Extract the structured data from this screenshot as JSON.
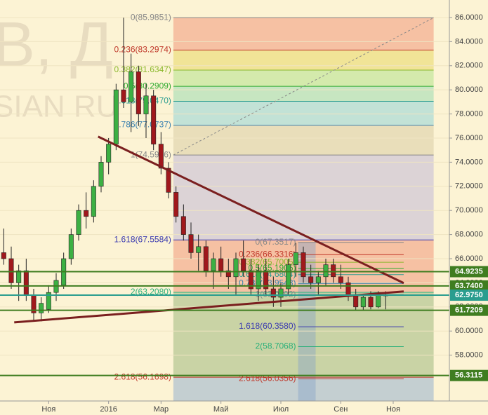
{
  "chart_data": {
    "type": "candlestick",
    "watermark": [
      "В, Д",
      "SIAN RU"
    ],
    "categories": [
      null,
      null,
      null,
      null,
      null,
      null,
      "Ноя",
      null,
      null,
      null,
      null,
      null,
      null,
      null,
      "2016",
      null,
      null,
      null,
      null,
      null,
      null,
      "Мар",
      null,
      null,
      null,
      null,
      null,
      null,
      null,
      "Май",
      null,
      null,
      null,
      null,
      null,
      null,
      null,
      "Июл",
      null,
      null,
      null,
      null,
      null,
      null,
      null,
      "Сен",
      null,
      null,
      null,
      null,
      null,
      null,
      "Ноя",
      null,
      null,
      null,
      null,
      null,
      null,
      null
    ],
    "open": [
      66.5,
      66,
      64,
      65,
      63,
      61.5,
      61.8,
      63.2,
      63.8,
      66,
      68,
      70,
      69.5,
      72,
      74,
      75.5,
      80,
      79,
      81.5,
      78,
      79.5,
      75.5,
      73.5,
      71.5,
      69.5,
      68,
      66.5,
      67,
      65,
      66,
      65,
      64.5,
      66,
      65,
      63.5,
      65,
      63.5,
      62.8,
      63.5,
      65.5,
      66.5,
      64.5,
      64,
      64.5,
      65.5,
      64.5,
      64,
      63,
      62,
      62.8,
      62,
      62.97,
      null,
      null,
      null,
      null,
      null,
      null,
      null,
      null
    ],
    "high": [
      68.5,
      67,
      65.5,
      66,
      63.5,
      62.8,
      63.8,
      64.8,
      66.5,
      68.5,
      70.5,
      71.5,
      72.5,
      74.5,
      76,
      80.5,
      85.9851,
      83,
      82,
      80.5,
      80,
      76.5,
      74,
      72,
      70.5,
      69,
      68,
      67.5,
      66.5,
      67,
      66,
      66.5,
      67.5,
      66,
      65.5,
      66,
      64.5,
      64,
      66,
      67.3,
      67,
      65.5,
      65,
      66,
      66,
      65.5,
      64.5,
      63.5,
      63,
      63.3,
      63.3,
      63.3,
      null,
      null,
      null,
      null,
      null,
      null,
      null,
      null
    ],
    "low": [
      65.5,
      63.5,
      62.5,
      62.5,
      60.8,
      60.8,
      61.5,
      62.5,
      63.5,
      65.5,
      67.5,
      68.5,
      69,
      71.5,
      73,
      75,
      78.5,
      76.5,
      77,
      76,
      75,
      73,
      71,
      69,
      67.5,
      66,
      65,
      64.5,
      63.5,
      64.5,
      63.5,
      63,
      64.5,
      63,
      62.5,
      63,
      62,
      62,
      63,
      64.5,
      64,
      63.5,
      63,
      63.8,
      64,
      63.5,
      62.5,
      61.7,
      61.7,
      61.8,
      61.9,
      61.8,
      null,
      null,
      null,
      null,
      null,
      null,
      null,
      null
    ],
    "close": [
      66,
      64,
      65,
      63,
      61.5,
      62.3,
      63.2,
      64.2,
      66,
      68,
      70,
      69.5,
      72,
      74,
      75.5,
      80,
      79,
      81.5,
      78,
      79.5,
      75.5,
      73.5,
      71.5,
      69.5,
      68,
      66.5,
      67,
      65,
      66,
      65,
      64.5,
      66,
      65,
      63.5,
      65,
      63.5,
      62.8,
      63.5,
      65.5,
      66.5,
      64.5,
      64,
      64.5,
      65.5,
      64.5,
      64,
      63,
      62,
      62.8,
      62,
      62.97,
      62.975,
      null,
      null,
      null,
      null,
      null,
      null,
      null,
      null
    ],
    "up_color": "#3cb043",
    "down_color": "#a0181c",
    "ylim": [
      54.2,
      87.45
    ],
    "yticks": [
      {
        "value": 58,
        "label": "58.0000"
      },
      {
        "value": 60,
        "label": "60.0000"
      },
      {
        "value": 62,
        "label": "62.0000"
      },
      {
        "value": 64,
        "label": "64.0000"
      },
      {
        "value": 66,
        "label": "66.0000"
      },
      {
        "value": 68,
        "label": "68.0000"
      },
      {
        "value": 70,
        "label": "70.0000"
      },
      {
        "value": 72,
        "label": "72.0000"
      },
      {
        "value": 74,
        "label": "74.0000"
      },
      {
        "value": 76,
        "label": "76.0000"
      },
      {
        "value": 78,
        "label": "78.0000"
      },
      {
        "value": 80,
        "label": "80.0000"
      },
      {
        "value": 82,
        "label": "82.0000"
      },
      {
        "value": 84,
        "label": "84.0000"
      },
      {
        "value": 86,
        "label": "86.0000"
      }
    ],
    "price_lines": [
      {
        "value": 64.9235,
        "label": "64.9235",
        "color": "#3f7d20"
      },
      {
        "value": 63.74,
        "label": "63.7400",
        "color": "#3f7d20"
      },
      {
        "value": 62.975,
        "label": "62.9750",
        "color": "#2a9d8f"
      },
      {
        "value": 61.7209,
        "label": "61.7209",
        "color": "#3f7d20"
      },
      {
        "value": 56.3115,
        "label": "56.3115",
        "color": "#3f7d20"
      }
    ],
    "fib_main": {
      "x": [
        22.65,
        57.4
      ],
      "levels": [
        {
          "value": 85.9851,
          "label": "0(85.9851)",
          "color": "#888888",
          "band": "#f4b79a"
        },
        {
          "value": 83.2974,
          "label": "0.236(83.2974)",
          "color": "#c0392b",
          "band": "#efe08c"
        },
        {
          "value": 81.6347,
          "label": "0.382(81.6347)",
          "color": "#8bb82c",
          "band": "#cde8a4"
        },
        {
          "value": 80.2909,
          "label": "0.5(80.2909)",
          "color": "#2eaa2e",
          "band": "#bde3bd"
        },
        {
          "value": 79.047,
          "label": "0.618(79.0470)",
          "color": "#2a9d8f",
          "band": "#b7ded6"
        },
        {
          "value": 77.0737,
          "label": "0.786(77.0737)",
          "color": "#3b82b0",
          "band": "#e5d9b5"
        },
        {
          "value": 74.5966,
          "label": "1(74.5966)",
          "color": "#888888",
          "band": "#d6ccd6"
        },
        {
          "value": 67.5584,
          "label": "1.618(67.5584)",
          "color": "#3b3bb0",
          "band": "#f4b79a"
        },
        {
          "value": 63.208,
          "label": "2(63.2080)",
          "color": "#2ab07a",
          "band": "#c0cc9c"
        },
        {
          "value": 56.1698,
          "label": "2.618(56.1698)",
          "color": "#c0392b",
          "band": "#bac8d0"
        }
      ]
    },
    "fib_second": {
      "x": [
        39.3,
        53.4
      ],
      "levels": [
        {
          "value": 67.3517,
          "label": "0(67.3517)",
          "color": "#888888"
        },
        {
          "value": 66.3316,
          "label": "0.236(66.3316)",
          "color": "#c0392b"
        },
        {
          "value": 65.7005,
          "label": "0.382(65.7005)",
          "color": "#8bb82c"
        },
        {
          "value": 65.1905,
          "label": "0.5(65.1905)",
          "color": "#2eaa2e"
        },
        {
          "value": 64.6804,
          "label": "0.618(64.6804)",
          "color": "#2a9d8f"
        },
        {
          "value": 63.9543,
          "label": "0.786(63.9543)",
          "color": "#3b82b0"
        },
        {
          "value": 63.0292,
          "label": "1(63.0292)",
          "color": "#888888"
        },
        {
          "value": 60.358,
          "label": "1.618(60.3580)",
          "color": "#3b3bb0"
        },
        {
          "value": 58.7068,
          "label": "2(58.7068)",
          "color": "#2ab07a"
        },
        {
          "value": 56.0356,
          "label": "2.618(56.0356)",
          "color": "#c0392b"
        }
      ]
    },
    "trendlines": [
      {
        "x": [
          12.6,
          53.4
        ],
        "y": [
          76.12,
          63.98
        ],
        "color": "#7a1f1f",
        "dash": false
      },
      {
        "x": [
          1.4,
          53.4
        ],
        "y": [
          60.72,
          63.28
        ],
        "color": "#7a1f1f",
        "dash": false
      },
      {
        "x": [
          22.65,
          57.4
        ],
        "y": [
          74.5966,
          85.9851
        ],
        "color": "#888888",
        "dash": true
      }
    ]
  }
}
